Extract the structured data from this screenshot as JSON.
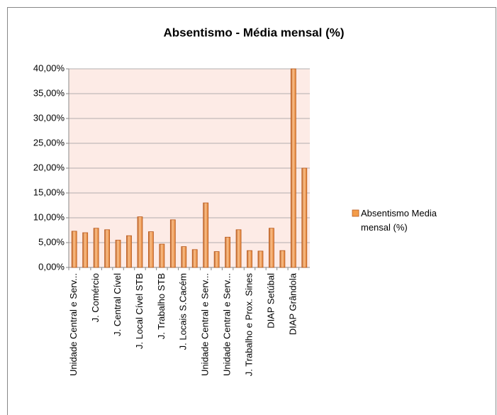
{
  "chart_data": {
    "type": "bar",
    "title": "Absentismo - Média mensal (%)",
    "categories": [
      "Unidade Central e Serv...",
      null,
      "J. Comércio",
      null,
      "J. Central Cível",
      null,
      "J. Local Cível STB",
      null,
      "J. Trabalho STB",
      null,
      "J. Locais S.Cacém",
      null,
      "Unidade Central e Serv...",
      null,
      "Unidade Central e Serv...",
      null,
      "J. Trabalho e Prox. Sines",
      null,
      "DIAP Setúbal",
      null,
      "DIAP Grândola",
      null
    ],
    "series": [
      {
        "name": "Absentismo Media mensal (%)",
        "color": "#f39c4a",
        "values": [
          7.3,
          7.0,
          7.9,
          7.6,
          5.5,
          6.4,
          10.2,
          7.2,
          4.7,
          9.6,
          4.2,
          3.6,
          13.0,
          3.2,
          6.1,
          7.6,
          3.4,
          3.3,
          7.9,
          3.4,
          40.0,
          20.0
        ]
      }
    ],
    "ylim": [
      0,
      40
    ],
    "yticks": [
      {
        "value": 0,
        "label": "0,00%"
      },
      {
        "value": 5,
        "label": "5,00%"
      },
      {
        "value": 10,
        "label": "10,00%"
      },
      {
        "value": 15,
        "label": "15,00%"
      },
      {
        "value": 20,
        "label": "20,00%"
      },
      {
        "value": 25,
        "label": "25,00%"
      },
      {
        "value": 30,
        "label": "30,00%"
      },
      {
        "value": 35,
        "label": "35,00%"
      },
      {
        "value": 40,
        "label": "40,00%"
      }
    ],
    "grid": true,
    "plot_background": "#fdebe6",
    "legend": "right"
  }
}
